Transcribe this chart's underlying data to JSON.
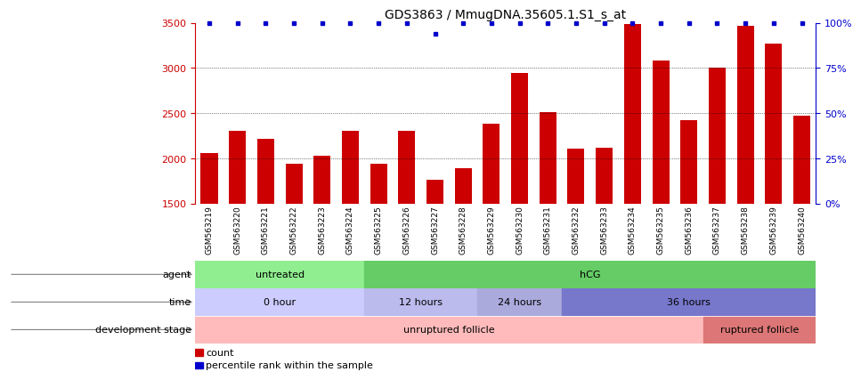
{
  "title": "GDS3863 / MmugDNA.35605.1.S1_s_at",
  "samples": [
    "GSM563219",
    "GSM563220",
    "GSM563221",
    "GSM563222",
    "GSM563223",
    "GSM563224",
    "GSM563225",
    "GSM563226",
    "GSM563227",
    "GSM563228",
    "GSM563229",
    "GSM563230",
    "GSM563231",
    "GSM563232",
    "GSM563233",
    "GSM563234",
    "GSM563235",
    "GSM563236",
    "GSM563237",
    "GSM563238",
    "GSM563239",
    "GSM563240"
  ],
  "counts": [
    2060,
    2300,
    2215,
    1940,
    2030,
    2305,
    1940,
    2300,
    1760,
    1890,
    2380,
    2950,
    2510,
    2105,
    2120,
    3490,
    3080,
    2420,
    3000,
    3470,
    3270,
    2470
  ],
  "percentile_high": [
    true,
    true,
    true,
    true,
    true,
    true,
    true,
    true,
    false,
    true,
    true,
    true,
    true,
    true,
    true,
    true,
    true,
    true,
    true,
    true,
    true,
    true
  ],
  "ylim_left": [
    1500,
    3500
  ],
  "ylim_right": [
    0,
    100
  ],
  "yticks_left": [
    1500,
    2000,
    2500,
    3000,
    3500
  ],
  "yticks_right": [
    0,
    25,
    50,
    75,
    100
  ],
  "bar_color": "#cc0000",
  "dot_color": "#0000cc",
  "agent_untreated": {
    "label": "untreated",
    "start": 0,
    "end": 6,
    "color": "#90ee90"
  },
  "agent_hcg": {
    "label": "hCG",
    "start": 6,
    "end": 22,
    "color": "#66cc66"
  },
  "time_0h": {
    "label": "0 hour",
    "start": 0,
    "end": 6,
    "color": "#ccccff"
  },
  "time_12h": {
    "label": "12 hours",
    "start": 6,
    "end": 10,
    "color": "#bbbbee"
  },
  "time_24h": {
    "label": "24 hours",
    "start": 10,
    "end": 13,
    "color": "#aaaadd"
  },
  "time_36h": {
    "label": "36 hours",
    "start": 13,
    "end": 22,
    "color": "#7777cc"
  },
  "dev_unruptured": {
    "label": "unruptured follicle",
    "start": 0,
    "end": 18,
    "color": "#ffbbbb"
  },
  "dev_ruptured": {
    "label": "ruptured follicle",
    "start": 18,
    "end": 22,
    "color": "#dd7777"
  },
  "legend_items": [
    "count",
    "percentile rank within the sample"
  ],
  "legend_colors": [
    "#cc0000",
    "#0000cc"
  ],
  "background_color": "#ffffff",
  "xtick_bg_color": "#cccccc",
  "row_label_fontsize": 8,
  "bar_fontsize": 7,
  "annotation_fontsize": 8
}
